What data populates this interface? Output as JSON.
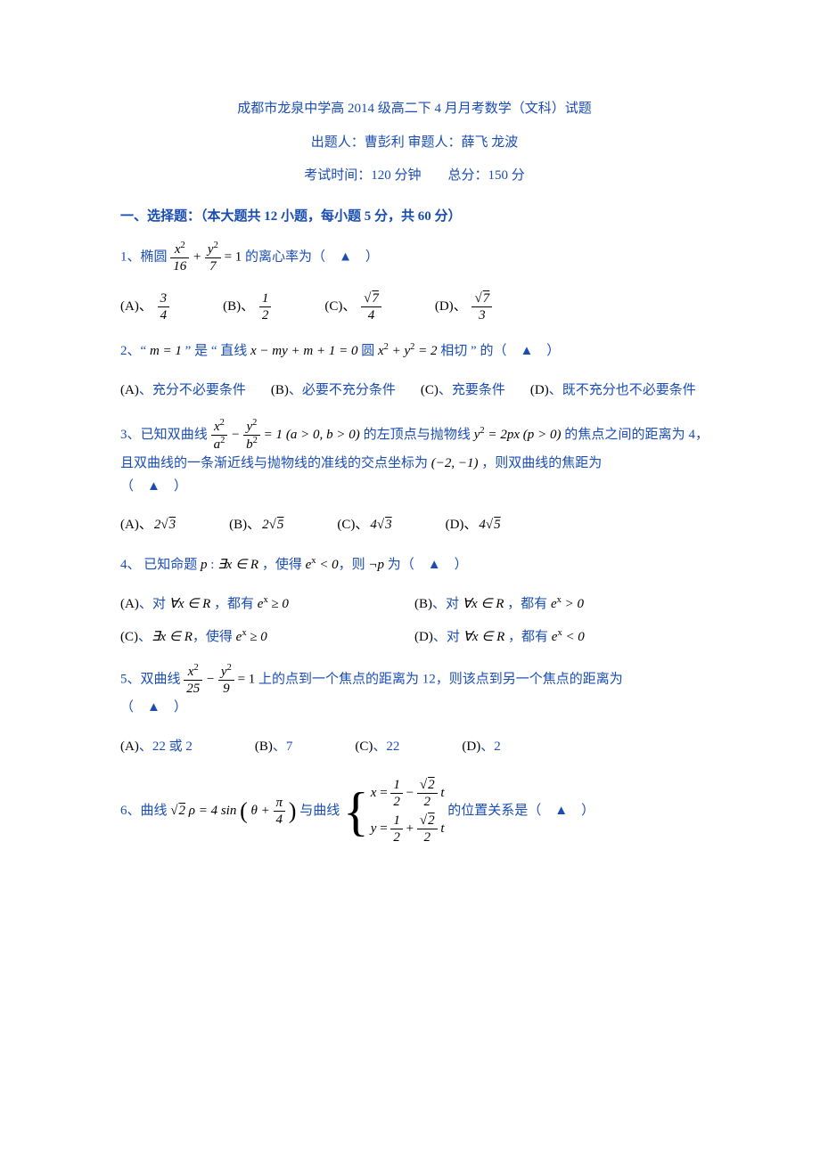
{
  "colors": {
    "primary": "#1a4db3",
    "black": "#000000",
    "background": "#ffffff"
  },
  "header": {
    "title": "成都市龙泉中学高 2014 级高二下 4 月月考数学（文科）试题",
    "authors": "出题人：曹彭利  审题人：薛飞  龙波",
    "exam_info": "考试时间：120 分钟　　总分：150 分"
  },
  "section_heading": "一、选择题：（本大题共 12 小题，每小题 5 分，共 60 分）",
  "q1": {
    "num": "1、",
    "pre": "椭圆 ",
    "eq_tail": " = 1 的离心率为（　▲　）",
    "opts": {
      "frac_a_num": "3",
      "frac_a_den": "4",
      "frac_b_num": "1",
      "frac_b_den": "2",
      "frac_c_num": "√7",
      "frac_c_den": "4",
      "frac_d_num": "√7",
      "frac_d_den": "3"
    }
  },
  "q2": {
    "num": "2、",
    "text_pre": "“ ",
    "m_eq": "m = 1",
    "text_mid1": " ” 是 “ 直线 ",
    "line_eq": "x − my + m + 1 = 0",
    "text_mid2": " 圆 ",
    "circle_eq": "x² + y² = 2",
    "text_tail": " 相切 ” 的（　▲　）",
    "A": "、充分不必要条件",
    "B": "、必要不充分条件",
    "C": "、充要条件",
    "D": "、既不充分也不必要条件"
  },
  "q3": {
    "num": "3、已知双曲线 ",
    "cond": " = 1 (a > 0, b > 0) 的左顶点与抛物线 ",
    "parab": "y² = 2px (p > 0)",
    "tail1": " 的焦点之间的距离为 4，且双曲线的一条渐近线与抛物线的准线的交点坐标为 ",
    "point": "(−2, −1)",
    "tail2": "，则双曲线的焦距为（　▲　）",
    "A": "2√3",
    "B": "2√5",
    "C": "4√3",
    "D": "4√5"
  },
  "q4": {
    "num": "4、",
    "stem": "已知命题 p : ∃x ∈ R ，使得 eˣ < 0，则 ¬p 为（　▲　）",
    "A": "对 ∀x ∈ R ，都有 eˣ ≥ 0",
    "B": "对 ∀x ∈ R ，都有 eˣ > 0",
    "C": "∃x ∈ R，使得 eˣ ≥ 0",
    "D": "对 ∀x ∈ R ，都有 eˣ < 0"
  },
  "q5": {
    "num": "5、双曲线 ",
    "tail": " = 1 上的点到一个焦点的距离为 12，则该点到另一个焦点的距离为（　▲　）",
    "A": "22 或 2",
    "B": "7",
    "C": "22",
    "D": "2"
  },
  "q6": {
    "num": "6、曲线 ",
    "polar_left": "√2 ρ = 4 sin",
    "polar_arg": "θ + π/4",
    "mid": " 与曲线 ",
    "sys_x_pre": "x = ",
    "sys_y_pre": "y = ",
    "t": " t",
    "tail": " 的位置关系是（　▲　）"
  },
  "labels": {
    "A": "(A)",
    "B": "(B)",
    "C": "(C)",
    "D": "(D)",
    "sep": "、"
  }
}
